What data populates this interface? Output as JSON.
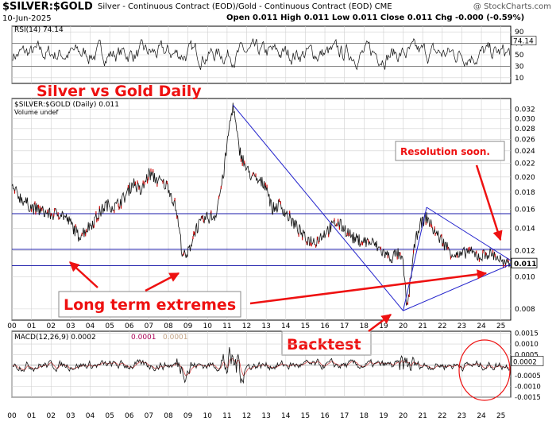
{
  "header": {
    "title": "$SILVER:$GOLD",
    "subtitle": "Silver - Continuous Contract (EOD)/Gold - Continuous Contract (EOD) CME",
    "source": "@ StockCharts.com",
    "date": "10-Jun-2025",
    "ohlc": "Open 0.011 High 0.011 Low 0.011 Close 0.011 Chg -0.000 (-0.59%)"
  },
  "colors": {
    "price": "#111111",
    "price_dn": "#cc0000",
    "trendline": "#2222cc",
    "hline": "#1a1aaa",
    "annotation": "#ee1111",
    "grid": "#d0d0d0",
    "macd_signal": "#cc3333"
  },
  "chart_data": [
    {
      "type": "line",
      "panel": "rsi",
      "legend": "RSI(14) 74.14",
      "ylim": [
        0,
        100
      ],
      "ticks": [
        10,
        30,
        50,
        70,
        90
      ],
      "last_value_label": "74.14",
      "overbought": 70,
      "oversold": 30
    },
    {
      "type": "line",
      "panel": "price",
      "series_label": "$SILVER:$GOLD (Daily) 0.011",
      "volume_label": "Volume undef",
      "scale": "log",
      "ylim": [
        0.0074,
        0.0345
      ],
      "yticks": [
        0.008,
        0.01,
        0.012,
        0.014,
        0.016,
        0.018,
        0.02,
        0.022,
        0.024,
        0.026,
        0.028,
        0.03,
        0.032
      ],
      "ytick_labels": [
        "0.008",
        "0.010",
        "0.012",
        "0.014",
        "0.016",
        "0.018",
        "0.020",
        "0.022",
        "0.024",
        "0.026",
        "0.028",
        "0.030",
        "0.032"
      ],
      "last_value_label": "0.011",
      "xlim": [
        2000.0,
        2025.5
      ],
      "x_labels": [
        "00",
        "01",
        "02",
        "03",
        "04",
        "05",
        "06",
        "07",
        "08",
        "09",
        "10",
        "11",
        "12",
        "13",
        "14",
        "15",
        "16",
        "17",
        "18",
        "19",
        "20",
        "21",
        "22",
        "23",
        "24",
        "25"
      ],
      "x": [
        2000.0,
        2000.5,
        2001.0,
        2001.5,
        2002.0,
        2002.5,
        2003.0,
        2003.4,
        2003.8,
        2004.3,
        2004.8,
        2005.3,
        2005.8,
        2006.2,
        2006.6,
        2007.0,
        2007.5,
        2008.0,
        2008.4,
        2008.7,
        2008.9,
        2009.4,
        2009.9,
        2010.4,
        2010.8,
        2011.1,
        2011.3,
        2011.6,
        2012.0,
        2012.5,
        2013.0,
        2013.3,
        2013.7,
        2014.2,
        2014.7,
        2015.0,
        2015.5,
        2016.0,
        2016.6,
        2017.0,
        2017.5,
        2018.0,
        2018.5,
        2019.0,
        2019.4,
        2019.7,
        2020.0,
        2020.2,
        2020.35,
        2020.6,
        2020.8,
        2021.2,
        2021.5,
        2022.0,
        2022.5,
        2022.9,
        2023.3,
        2023.6,
        2024.0,
        2024.3,
        2024.7,
        2025.0,
        2025.2,
        2025.45
      ],
      "y": [
        0.0185,
        0.0172,
        0.0162,
        0.0158,
        0.0154,
        0.0156,
        0.0145,
        0.0133,
        0.0139,
        0.015,
        0.0165,
        0.0163,
        0.0175,
        0.0193,
        0.018,
        0.0205,
        0.0195,
        0.0187,
        0.016,
        0.012,
        0.0113,
        0.014,
        0.015,
        0.0153,
        0.02,
        0.028,
        0.033,
        0.0245,
        0.021,
        0.0195,
        0.019,
        0.016,
        0.0165,
        0.015,
        0.0138,
        0.013,
        0.0128,
        0.0136,
        0.0146,
        0.014,
        0.013,
        0.0128,
        0.0126,
        0.0118,
        0.0114,
        0.0118,
        0.011,
        0.008,
        0.0095,
        0.0125,
        0.0142,
        0.0152,
        0.014,
        0.0128,
        0.0118,
        0.0115,
        0.012,
        0.0117,
        0.0115,
        0.0118,
        0.0116,
        0.0112,
        0.0108,
        0.011
      ],
      "hlines": [
        0.0155,
        0.0121,
        0.0108
      ],
      "trendlines": [
        {
          "from": [
            2011.3,
            0.033
          ],
          "to": [
            2020.0,
            0.0079
          ]
        },
        {
          "from": [
            2020.0,
            0.0079
          ],
          "to": [
            2021.2,
            0.0162
          ]
        },
        {
          "from": [
            2021.2,
            0.0162
          ],
          "to": [
            2025.5,
            0.0112
          ]
        },
        {
          "from": [
            2020.0,
            0.0079
          ],
          "to": [
            2025.5,
            0.0109
          ]
        }
      ],
      "annotations": {
        "title": "Silver vs Gold  Daily",
        "resolution": "Resolution soon.",
        "extremes": "Long term extremes",
        "backtest": "Backtest"
      }
    },
    {
      "type": "line",
      "panel": "macd",
      "legend_main": "MACD(12,26,9) 0.0002",
      "legend_signal": "0.0001",
      "legend_hist": "0.0001",
      "ylim": [
        -0.0015,
        0.0016
      ],
      "ticks": [
        0.0015,
        0.001,
        0.0005,
        -0.0005,
        -0.001,
        -0.0015
      ],
      "tick_labels": [
        "0.0015",
        "0.0010",
        "0.0005",
        "-0.0005",
        "-0.0010",
        "-0.0015"
      ],
      "last_value_label": "0.0002",
      "x_labels": [
        "00",
        "01",
        "02",
        "03",
        "04",
        "05",
        "06",
        "07",
        "08",
        "09",
        "10",
        "11",
        "12",
        "13",
        "14",
        "15",
        "16",
        "17",
        "18",
        "19",
        "20",
        "21",
        "22",
        "23",
        "24",
        "25"
      ]
    }
  ]
}
